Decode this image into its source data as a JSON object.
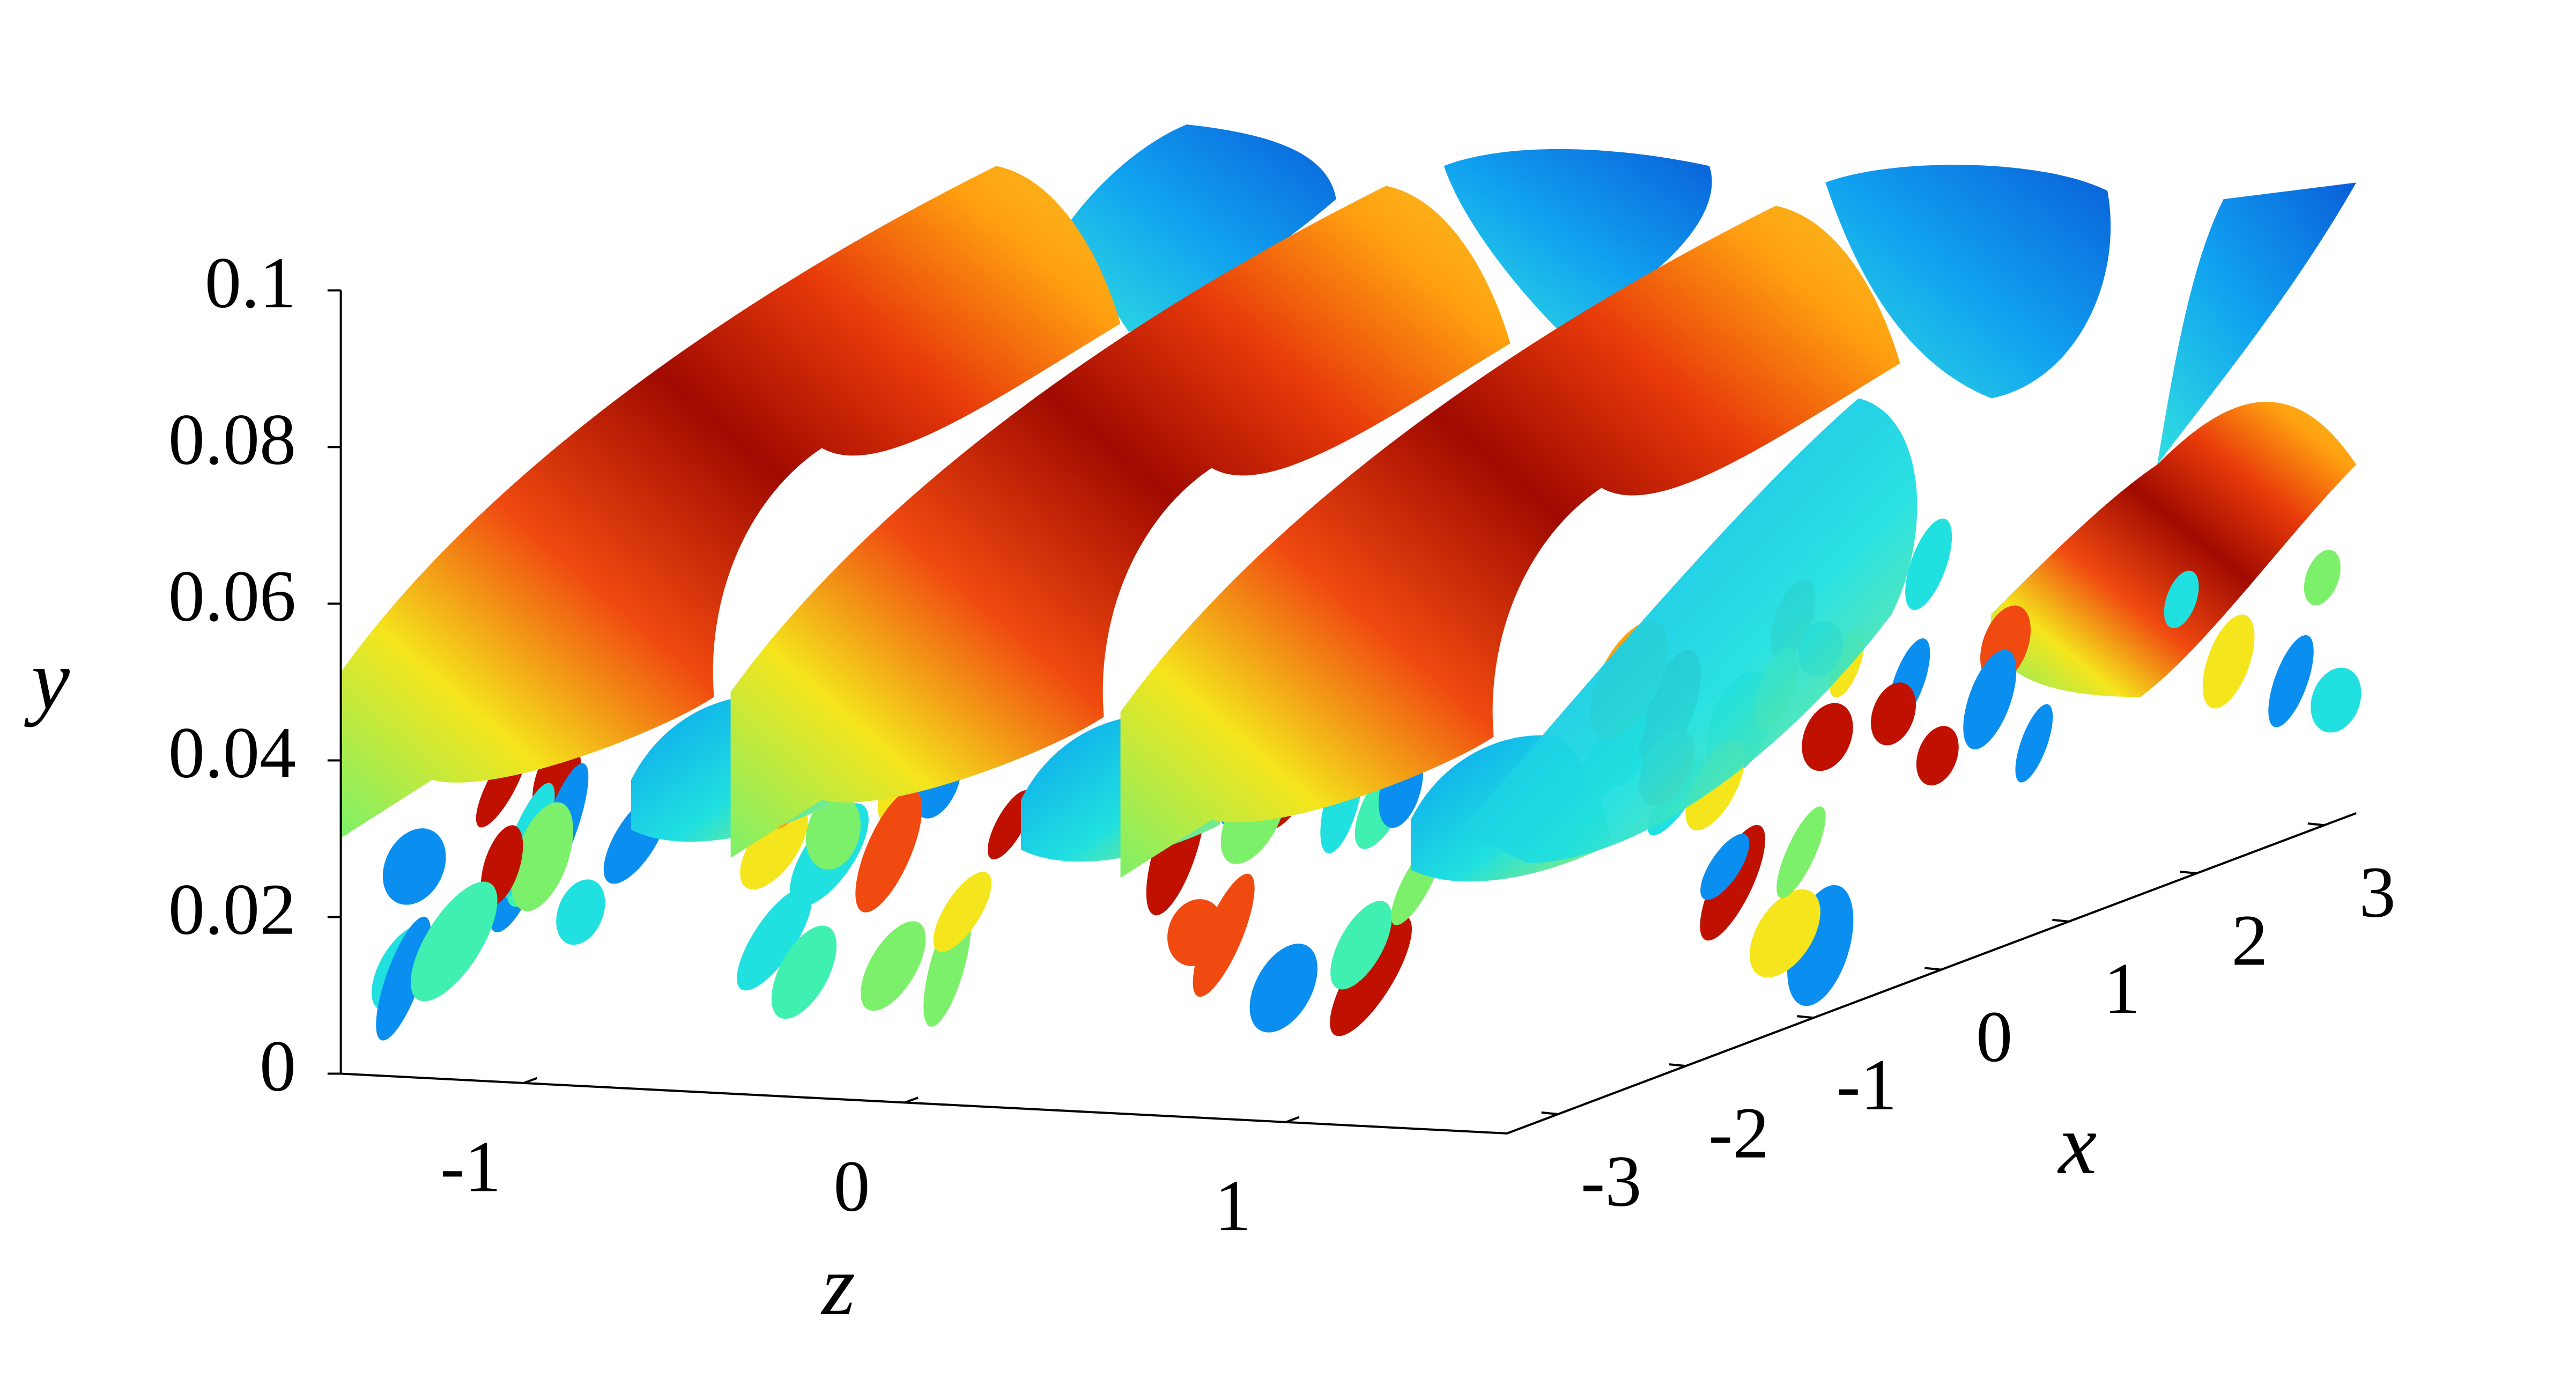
{
  "chart_data": {
    "type": "isosurface3d",
    "xlabel": "x",
    "ylabel": "y",
    "zlabel": "z",
    "xlim": [
      -3.4,
      3.25
    ],
    "xticks": [
      -3,
      -2,
      -1,
      0,
      1,
      2,
      3
    ],
    "ylim": [
      0,
      0.1
    ],
    "yticks": [
      0,
      0.02,
      0.04,
      0.06,
      0.08,
      0.1
    ],
    "zlim": [
      -1.48,
      1.58
    ],
    "zticks": [
      -1,
      0,
      1
    ]
  }
}
